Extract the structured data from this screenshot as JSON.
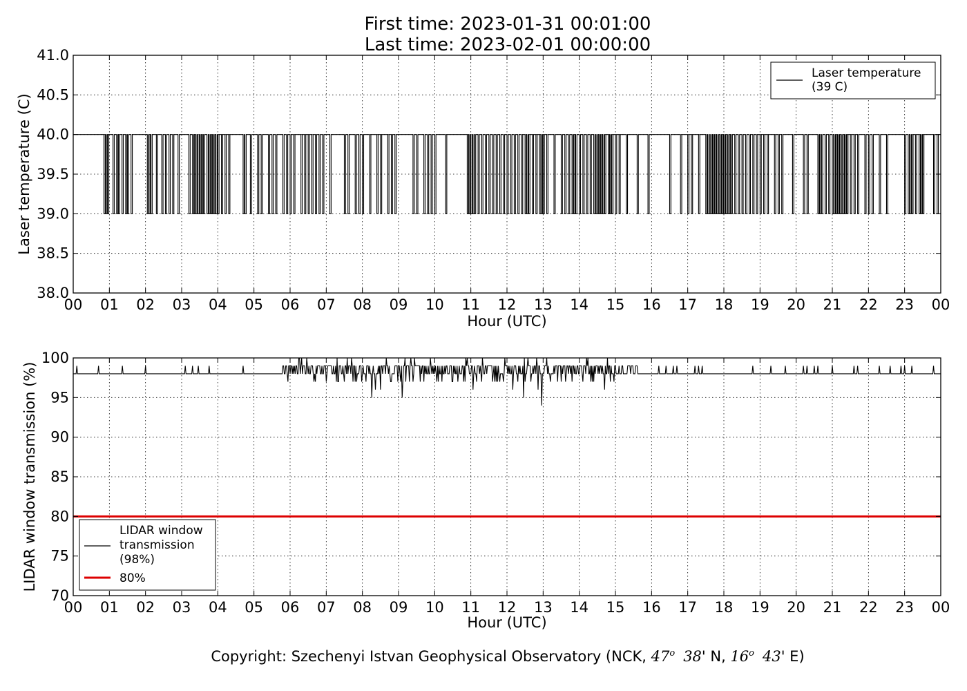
{
  "header": {
    "first_time": "First time: 2023-01-31 00:01:00",
    "last_time": "Last time: 2023-02-01 00:00:00"
  },
  "footer": {
    "copyright_prefix": "Copyright: Szechenyi Istvan Geophysical Observatory (NCK, ",
    "lat_deg": "47",
    "deg_mark": "o",
    "lat_min": "38",
    "lat_suffix": "' N, ",
    "lon_deg": "16",
    "lon_min": "43",
    "lon_suffix": "' E)"
  },
  "chart_data": [
    {
      "type": "line",
      "xlabel": "Hour (UTC)",
      "ylabel": "Laser temperature (C)",
      "xlim": [
        0,
        24
      ],
      "ylim": [
        38.0,
        41.0
      ],
      "x_ticks": [
        0,
        1,
        2,
        3,
        4,
        5,
        6,
        7,
        8,
        9,
        10,
        11,
        12,
        13,
        14,
        15,
        16,
        17,
        18,
        19,
        20,
        21,
        22,
        23,
        24
      ],
      "x_tick_labels": [
        "00",
        "01",
        "02",
        "03",
        "04",
        "05",
        "06",
        "07",
        "08",
        "09",
        "10",
        "11",
        "12",
        "13",
        "14",
        "15",
        "16",
        "17",
        "18",
        "19",
        "20",
        "21",
        "22",
        "23",
        "00"
      ],
      "y_ticks": [
        38.0,
        38.5,
        39.0,
        39.5,
        40.0,
        40.5,
        41.0
      ],
      "y_tick_labels": [
        "38.0",
        "38.5",
        "39.0",
        "39.5",
        "40.0",
        "40.5",
        "41.0"
      ],
      "grid": true,
      "legend_position": "top-right",
      "series": [
        {
          "name": "Laser temperature (39 C)",
          "legend_lines": [
            "Laser temperature",
            "(39 C)"
          ],
          "color": "#000000",
          "baseline": 40.0,
          "low_value": 39.0,
          "dip_hours": [
            0.85,
            0.9,
            0.95,
            1.1,
            1.2,
            1.25,
            1.35,
            1.45,
            1.5,
            1.6,
            2.05,
            2.1,
            2.15,
            2.3,
            2.45,
            2.55,
            2.65,
            2.75,
            2.9,
            3.2,
            3.3,
            3.35,
            3.4,
            3.45,
            3.5,
            3.55,
            3.6,
            3.7,
            3.75,
            3.8,
            3.85,
            3.9,
            3.95,
            4.0,
            4.1,
            4.2,
            4.3,
            4.7,
            4.75,
            4.9,
            5.1,
            5.2,
            5.4,
            5.5,
            5.6,
            5.8,
            5.9,
            6.0,
            6.1,
            6.3,
            6.4,
            6.5,
            6.6,
            6.7,
            6.8,
            6.9,
            7.1,
            7.5,
            7.6,
            7.8,
            7.9,
            8.0,
            8.2,
            8.4,
            8.5,
            8.7,
            8.8,
            8.9,
            9.4,
            9.5,
            9.7,
            9.8,
            9.9,
            10.0,
            10.3,
            10.9,
            10.95,
            11.0,
            11.05,
            11.1,
            11.2,
            11.3,
            11.4,
            11.5,
            11.6,
            11.7,
            11.8,
            11.9,
            12.0,
            12.1,
            12.2,
            12.3,
            12.4,
            12.5,
            12.55,
            12.6,
            12.7,
            12.8,
            12.9,
            12.95,
            13.0,
            13.1,
            13.3,
            13.5,
            13.6,
            13.7,
            13.8,
            13.85,
            13.9,
            14.0,
            14.1,
            14.2,
            14.3,
            14.4,
            14.45,
            14.5,
            14.55,
            14.6,
            14.65,
            14.7,
            14.8,
            14.85,
            14.9,
            15.0,
            15.1,
            15.3,
            15.6,
            15.9,
            16.5,
            16.8,
            17.0,
            17.1,
            17.3,
            17.5,
            17.55,
            17.6,
            17.65,
            17.7,
            17.75,
            17.8,
            17.85,
            17.9,
            17.95,
            18.0,
            18.05,
            18.1,
            18.15,
            18.2,
            18.3,
            18.4,
            18.5,
            18.6,
            18.7,
            18.8,
            18.9,
            19.0,
            19.1,
            19.2,
            19.4,
            19.5,
            19.6,
            19.9,
            20.2,
            20.3,
            20.6,
            20.65,
            20.7,
            20.8,
            20.9,
            21.0,
            21.05,
            21.1,
            21.15,
            21.2,
            21.25,
            21.3,
            21.35,
            21.4,
            21.5,
            21.6,
            21.7,
            21.9,
            22.0,
            22.1,
            22.3,
            22.5,
            23.0,
            23.1,
            23.15,
            23.2,
            23.3,
            23.4,
            23.45,
            23.5,
            23.8,
            23.9
          ]
        }
      ]
    },
    {
      "type": "line",
      "xlabel": "Hour (UTC)",
      "ylabel": "LIDAR window transmission (%)",
      "xlim": [
        0,
        24
      ],
      "ylim": [
        70,
        100
      ],
      "x_ticks": [
        0,
        1,
        2,
        3,
        4,
        5,
        6,
        7,
        8,
        9,
        10,
        11,
        12,
        13,
        14,
        15,
        16,
        17,
        18,
        19,
        20,
        21,
        22,
        23,
        24
      ],
      "x_tick_labels": [
        "00",
        "01",
        "02",
        "03",
        "04",
        "05",
        "06",
        "07",
        "08",
        "09",
        "10",
        "11",
        "12",
        "13",
        "14",
        "15",
        "16",
        "17",
        "18",
        "19",
        "20",
        "21",
        "22",
        "23",
        "00"
      ],
      "y_ticks": [
        70,
        75,
        80,
        85,
        90,
        95,
        100
      ],
      "y_tick_labels": [
        "70",
        "75",
        "80",
        "85",
        "90",
        "95",
        "100"
      ],
      "grid": true,
      "legend_position": "bottom-left",
      "series": [
        {
          "name": "LIDAR window transmission (98%)",
          "legend_lines": [
            "LIDAR window",
            "transmission",
            "(98%)"
          ],
          "color": "#000000",
          "baseline": 98,
          "spikes": [
            [
              0.1,
              99
            ],
            [
              0.7,
              99
            ],
            [
              1.35,
              99
            ],
            [
              2.0,
              99
            ],
            [
              3.1,
              99
            ],
            [
              3.3,
              99
            ],
            [
              3.45,
              99
            ],
            [
              3.75,
              99
            ],
            [
              4.7,
              99
            ],
            [
              16.2,
              99
            ],
            [
              16.4,
              99
            ],
            [
              16.6,
              99
            ],
            [
              16.7,
              99
            ],
            [
              17.2,
              99
            ],
            [
              17.3,
              99
            ],
            [
              17.4,
              99
            ],
            [
              18.8,
              99
            ],
            [
              19.3,
              99
            ],
            [
              19.7,
              99
            ],
            [
              20.2,
              99
            ],
            [
              20.3,
              99
            ],
            [
              20.5,
              99
            ],
            [
              20.6,
              99
            ],
            [
              21.0,
              99
            ],
            [
              21.6,
              99
            ],
            [
              21.7,
              99
            ],
            [
              22.3,
              99
            ],
            [
              22.6,
              99
            ],
            [
              22.9,
              99
            ],
            [
              23.0,
              99
            ],
            [
              23.2,
              99
            ],
            [
              23.8,
              99
            ]
          ],
          "noisy_range": [
            5.8,
            15.6
          ],
          "noisy_min_typical": 97,
          "noisy_max": 100,
          "deep_dips": [
            [
              7.0,
              97
            ],
            [
              7.5,
              97
            ],
            [
              7.8,
              97
            ],
            [
              8.1,
              97
            ],
            [
              8.25,
              95
            ],
            [
              8.35,
              96
            ],
            [
              8.5,
              96
            ],
            [
              8.8,
              97
            ],
            [
              9.1,
              95
            ],
            [
              9.4,
              97
            ],
            [
              9.7,
              97
            ],
            [
              10.1,
              97
            ],
            [
              10.5,
              97
            ],
            [
              10.8,
              97
            ],
            [
              11.05,
              96
            ],
            [
              11.3,
              97
            ],
            [
              11.6,
              97
            ],
            [
              11.9,
              97
            ],
            [
              12.15,
              96
            ],
            [
              12.3,
              97
            ],
            [
              12.45,
              95
            ],
            [
              12.65,
              97
            ],
            [
              12.85,
              96
            ],
            [
              12.95,
              94
            ],
            [
              13.2,
              97
            ],
            [
              13.5,
              97
            ],
            [
              13.8,
              97
            ],
            [
              14.1,
              97
            ],
            [
              14.4,
              97
            ],
            [
              14.7,
              96
            ],
            [
              14.85,
              97
            ],
            [
              14.95,
              97
            ]
          ]
        },
        {
          "name": "80%",
          "legend_lines": [
            "80%"
          ],
          "color": "#dd0000",
          "constant": 80
        }
      ]
    }
  ]
}
